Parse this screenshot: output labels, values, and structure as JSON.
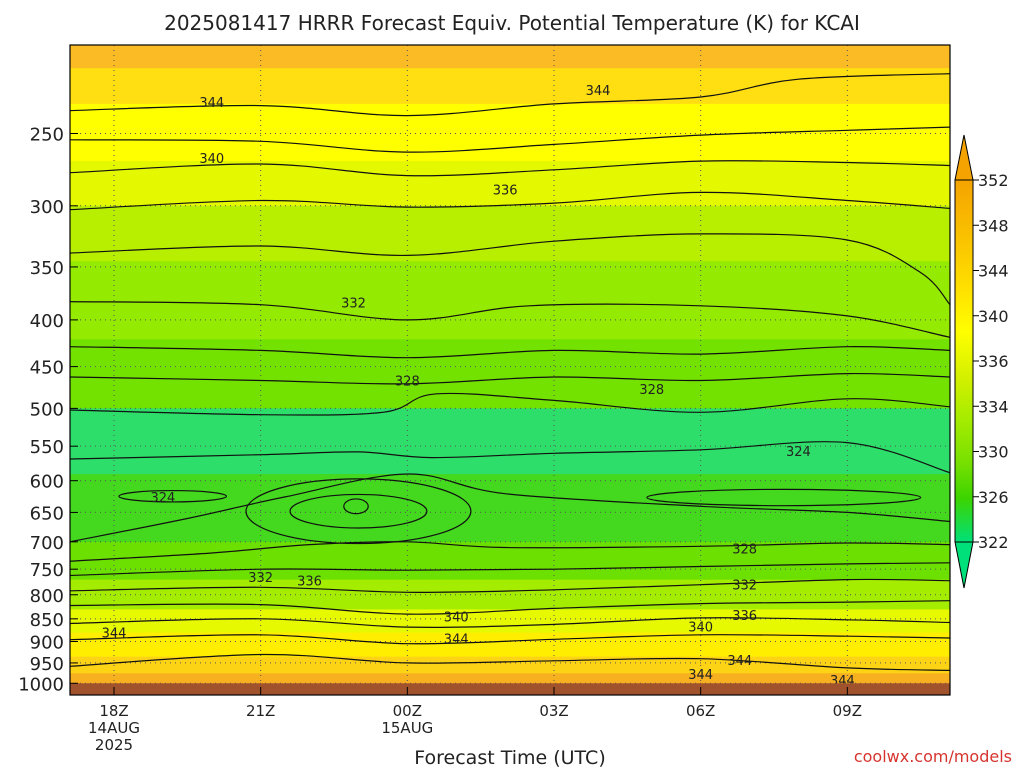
{
  "chart_data": {
    "type": "contour",
    "title": "2025081417 HRRR Forecast Equiv. Potential Temperature (K) for KCAI",
    "xlabel": "Forecast Time (UTC)",
    "ylabel": "",
    "credit": "coolwx.com/models",
    "x_unit": "forecast hour",
    "xlim": [
      -0.9,
      17.1
    ],
    "y_unit": "hPa",
    "y_scale": "log",
    "ylim": [
      200,
      1030
    ],
    "y_ticks": [
      250,
      300,
      350,
      400,
      450,
      500,
      550,
      600,
      650,
      700,
      750,
      800,
      850,
      900,
      950,
      1000
    ],
    "x_ticks": [
      {
        "h": 0,
        "lines": [
          "18Z",
          "14AUG",
          "2025"
        ]
      },
      {
        "h": 3,
        "lines": [
          "21Z"
        ]
      },
      {
        "h": 6,
        "lines": [
          "00Z",
          "15AUG"
        ]
      },
      {
        "h": 9,
        "lines": [
          "03Z"
        ]
      },
      {
        "h": 12,
        "lines": [
          "06Z"
        ]
      },
      {
        "h": 15,
        "lines": [
          "09Z"
        ]
      }
    ],
    "grid": true,
    "colorbar": {
      "labels": [
        "352",
        "348",
        "344",
        "340",
        "336",
        "334",
        "330",
        "326",
        "322"
      ],
      "colors": [
        "#f5a300",
        "#f9c000",
        "#ffe000",
        "#ffff00",
        "#d2f000",
        "#a6ec00",
        "#78e000",
        "#3cd400",
        "#00e07a"
      ],
      "extend": "both"
    },
    "bands": [
      {
        "color": "#fbbb24",
        "top": 200,
        "bottom": 212
      },
      {
        "color": "#ffde12",
        "top": 212,
        "bottom": 232
      },
      {
        "color": "#ffff00",
        "top": 232,
        "bottom": 268
      },
      {
        "color": "#e4f800",
        "top": 268,
        "bottom": 300
      },
      {
        "color": "#b8ef00",
        "top": 300,
        "bottom": 345
      },
      {
        "color": "#94ea00",
        "top": 345,
        "bottom": 420
      },
      {
        "color": "#74e200",
        "top": 420,
        "bottom": 500
      },
      {
        "color": "#2ede6a",
        "top": 500,
        "bottom": 590
      },
      {
        "color": "#44d81e",
        "top": 590,
        "bottom": 700
      },
      {
        "color": "#6ce000",
        "top": 700,
        "bottom": 770
      },
      {
        "color": "#a4ec00",
        "top": 770,
        "bottom": 830
      },
      {
        "color": "#e6f900",
        "top": 830,
        "bottom": 880
      },
      {
        "color": "#ffee00",
        "top": 880,
        "bottom": 935
      },
      {
        "color": "#fdd316",
        "top": 935,
        "bottom": 975
      },
      {
        "color": "#f7b020",
        "top": 975,
        "bottom": 1000
      }
    ],
    "contours": [
      {
        "x": [
          -0.9,
          3,
          6,
          9,
          12,
          14,
          17.1
        ],
        "p": [
          236,
          233,
          239,
          232,
          228,
          218,
          215
        ]
      },
      {
        "x": [
          -0.9,
          3,
          6,
          9,
          12,
          15,
          17.1
        ],
        "p": [
          254,
          255,
          262,
          257,
          251,
          248,
          246
        ]
      },
      {
        "x": [
          -0.9,
          3,
          6,
          9,
          12,
          15,
          17.1
        ],
        "p": [
          276,
          270,
          278,
          274,
          268,
          269,
          271
        ]
      },
      {
        "x": [
          -0.9,
          3,
          6,
          9,
          12,
          15,
          17.1
        ],
        "p": [
          303,
          296,
          301,
          298,
          290,
          296,
          302
        ]
      },
      {
        "x": [
          -0.9,
          3,
          6,
          9,
          12,
          15,
          16.5,
          17.1
        ],
        "p": [
          338,
          332,
          340,
          328,
          322,
          327,
          355,
          385
        ]
      },
      {
        "x": [
          -0.9,
          3,
          6,
          8.5,
          12,
          15,
          17.1
        ],
        "p": [
          382,
          385,
          400,
          386,
          386,
          396,
          418
        ]
      },
      {
        "x": [
          -0.9,
          3,
          6,
          9,
          12,
          15,
          17.1
        ],
        "p": [
          428,
          432,
          440,
          432,
          436,
          428,
          432
        ]
      },
      {
        "x": [
          -0.9,
          3,
          6,
          9,
          12,
          15,
          17.1
        ],
        "p": [
          462,
          466,
          470,
          462,
          466,
          458,
          462
        ]
      },
      {
        "x": [
          -0.9,
          3,
          5.5,
          6.6,
          9,
          12,
          15,
          17.1
        ],
        "p": [
          502,
          508,
          505,
          482,
          490,
          505,
          488,
          498
        ]
      },
      {
        "x": [
          -0.9,
          3,
          5,
          6.5,
          9,
          12,
          15,
          17.1
        ],
        "p": [
          568,
          562,
          558,
          566,
          560,
          555,
          545,
          588
        ]
      },
      {
        "x": [
          -0.9,
          1.5,
          3.5,
          6,
          8,
          12,
          15,
          17.1
        ],
        "p": [
          700,
          660,
          625,
          590,
          620,
          640,
          650,
          665
        ]
      },
      {
        "x": [
          -0.9,
          2,
          4,
          6,
          8,
          12,
          15,
          17.1
        ],
        "p": [
          735,
          720,
          705,
          700,
          710,
          708,
          702,
          705
        ]
      },
      {
        "x": [
          -0.9,
          3,
          6,
          9,
          12,
          15,
          17.1
        ],
        "p": [
          762,
          750,
          752,
          750,
          745,
          740,
          738
        ]
      },
      {
        "x": [
          -0.9,
          3,
          6,
          9,
          12,
          15,
          17.1
        ],
        "p": [
          792,
          785,
          795,
          790,
          780,
          770,
          772
        ]
      },
      {
        "x": [
          -0.9,
          3,
          6,
          9,
          12,
          15,
          17.1
        ],
        "p": [
          822,
          820,
          840,
          828,
          818,
          815,
          812
        ]
      },
      {
        "x": [
          -0.9,
          3,
          6,
          9,
          12,
          15,
          17.1
        ],
        "p": [
          860,
          850,
          868,
          862,
          848,
          852,
          858
        ]
      },
      {
        "x": [
          -0.9,
          3,
          6,
          9,
          12,
          15,
          17.1
        ],
        "p": [
          896,
          885,
          905,
          895,
          885,
          888,
          892
        ]
      },
      {
        "x": [
          -0.9,
          3,
          6,
          9,
          12,
          15,
          17.1
        ],
        "p": [
          958,
          930,
          950,
          945,
          940,
          962,
          968
        ]
      }
    ],
    "closed_contours": [
      {
        "center": [
          5.0,
          648
        ],
        "rx": 2.3,
        "r_hpa": 55
      },
      {
        "center": [
          5.0,
          648
        ],
        "rx": 1.4,
        "r_hpa": 28
      },
      {
        "center": [
          4.95,
          640
        ],
        "rx": 0.25,
        "r_hpa": 12
      },
      {
        "center": [
          1.2,
          624
        ],
        "rx": 1.1,
        "r_hpa": 9
      },
      {
        "center": [
          13.7,
          626
        ],
        "rx": 2.8,
        "r_hpa": 13
      }
    ],
    "contour_labels": [
      {
        "text": "344",
        "x": 9.9,
        "p": 224
      },
      {
        "text": "344",
        "x": 2.0,
        "p": 231
      },
      {
        "text": "340",
        "x": 2.0,
        "p": 266
      },
      {
        "text": "336",
        "x": 8.0,
        "p": 288
      },
      {
        "text": "332",
        "x": 4.9,
        "p": 383
      },
      {
        "text": "328",
        "x": 6.0,
        "p": 466
      },
      {
        "text": "328",
        "x": 11.0,
        "p": 476
      },
      {
        "text": "324",
        "x": 1.0,
        "p": 625
      },
      {
        "text": "324",
        "x": 14.0,
        "p": 557
      },
      {
        "text": "328",
        "x": 12.9,
        "p": 712
      },
      {
        "text": "332",
        "x": 3.0,
        "p": 765
      },
      {
        "text": "336",
        "x": 4.0,
        "p": 772
      },
      {
        "text": "332",
        "x": 12.9,
        "p": 780
      },
      {
        "text": "336",
        "x": 12.9,
        "p": 842
      },
      {
        "text": "340",
        "x": 7.0,
        "p": 845
      },
      {
        "text": "340",
        "x": 12.0,
        "p": 867
      },
      {
        "text": "344",
        "x": 0.0,
        "p": 880
      },
      {
        "text": "344",
        "x": 7.0,
        "p": 893
      },
      {
        "text": "344",
        "x": 12.8,
        "p": 943
      },
      {
        "text": "344",
        "x": 12.0,
        "p": 977
      },
      {
        "text": "344",
        "x": 14.9,
        "p": 992
      }
    ],
    "ground": {
      "color": "#a0522d",
      "from_hpa": 1000
    }
  }
}
